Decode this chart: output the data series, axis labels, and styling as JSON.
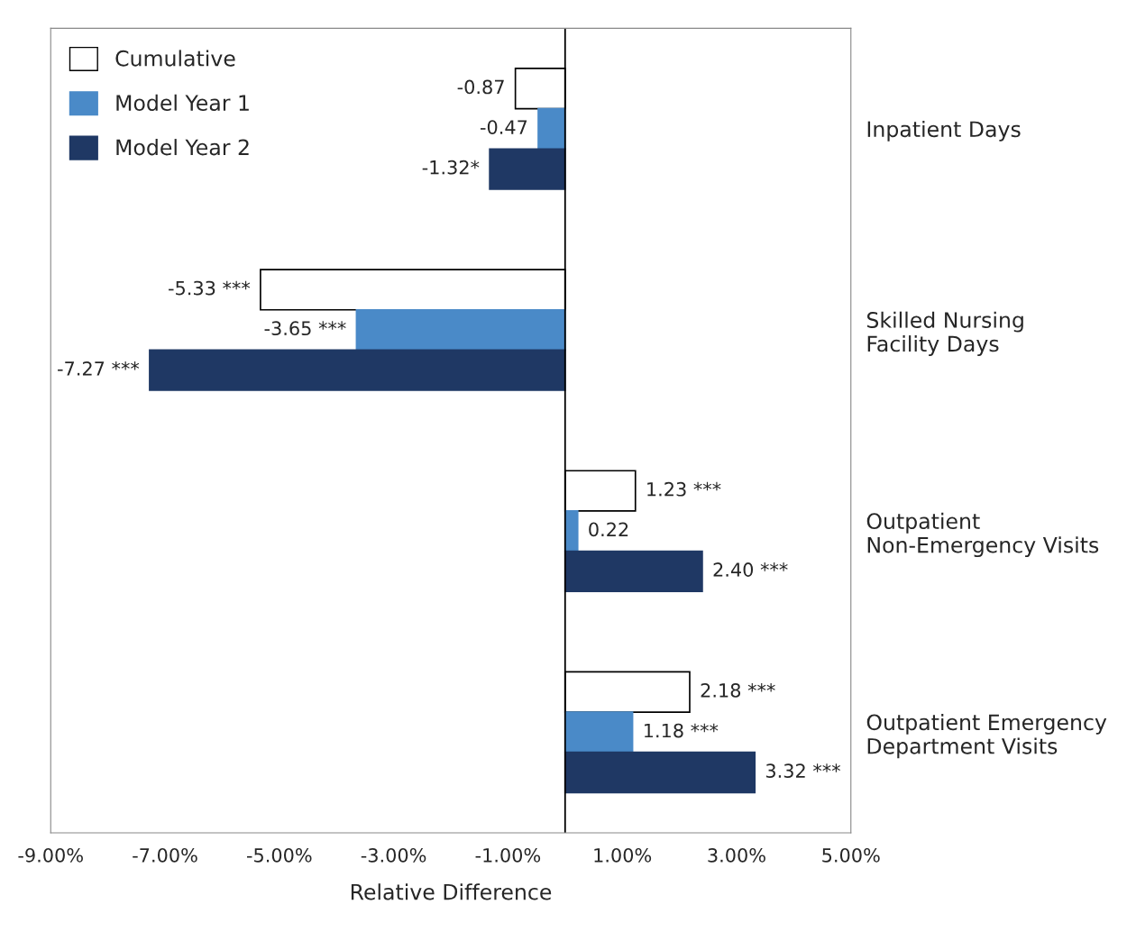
{
  "chart_data": {
    "type": "bar",
    "orientation": "horizontal",
    "xlabel": "Relative Difference",
    "categories": [
      "Inpatient Days",
      "Skilled Nursing\nFacility Days",
      "Outpatient\nNon-Emergency Visits",
      "Outpatient Emergency\nDepartment Visits"
    ],
    "series": [
      {
        "name": "Cumulative",
        "color": "#ffffff",
        "values": [
          -0.87,
          -5.33,
          1.23,
          2.18
        ],
        "value_labels": [
          "-0.87",
          "-5.33 ***",
          "1.23 ***",
          "2.18 ***"
        ]
      },
      {
        "name": "Model Year 1",
        "color": "#4a8ac8",
        "values": [
          -0.47,
          -3.65,
          0.22,
          1.18
        ],
        "value_labels": [
          "-0.47",
          "-3.65 ***",
          "0.22",
          "1.18 ***"
        ]
      },
      {
        "name": "Model Year 2",
        "color": "#1f3864",
        "values": [
          -1.32,
          -7.27,
          2.4,
          3.32
        ],
        "value_labels": [
          "-1.32*",
          "-7.27 ***",
          "2.40 ***",
          "3.32 ***"
        ]
      }
    ],
    "xlim": [
      -9,
      5
    ],
    "xticks": [
      {
        "value": -9,
        "label": "-9.00%"
      },
      {
        "value": -7,
        "label": "-7.00%"
      },
      {
        "value": -5,
        "label": "-5.00%"
      },
      {
        "value": -3,
        "label": "-3.00%"
      },
      {
        "value": -1,
        "label": "-1.00%"
      },
      {
        "value": 1,
        "label": "1.00%"
      },
      {
        "value": 3,
        "label": "3.00%"
      },
      {
        "value": 5,
        "label": "5.00%"
      }
    ],
    "ref_lines": [
      {
        "axis": "x",
        "value": 0,
        "color": "#000000"
      }
    ],
    "legend": "top left",
    "grid": false
  }
}
